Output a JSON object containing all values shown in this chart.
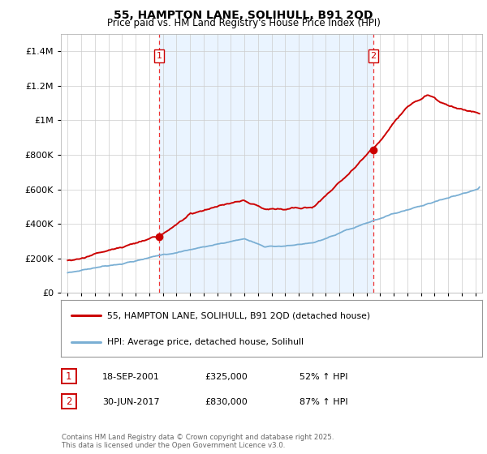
{
  "title": "55, HAMPTON LANE, SOLIHULL, B91 2QD",
  "subtitle": "Price paid vs. HM Land Registry's House Price Index (HPI)",
  "legend_label_red": "55, HAMPTON LANE, SOLIHULL, B91 2QD (detached house)",
  "legend_label_blue": "HPI: Average price, detached house, Solihull",
  "footnote": "Contains HM Land Registry data © Crown copyright and database right 2025.\nThis data is licensed under the Open Government Licence v3.0.",
  "transaction1_date": "18-SEP-2001",
  "transaction1_price": "£325,000",
  "transaction1_hpi": "52% ↑ HPI",
  "transaction2_date": "30-JUN-2017",
  "transaction2_price": "£830,000",
  "transaction2_hpi": "87% ↑ HPI",
  "vline1_x": 2001.72,
  "vline2_x": 2017.49,
  "marker1_x": 2001.72,
  "marker1_y": 325000,
  "marker2_x": 2017.49,
  "marker2_y": 830000,
  "ylim": [
    0,
    1500000
  ],
  "xlim": [
    1994.5,
    2025.5
  ],
  "background_color": "#ffffff",
  "grid_color": "#cccccc",
  "red_color": "#cc0000",
  "blue_color": "#7aafd4",
  "vline_color": "#ee3333",
  "shade_color": "#ddeeff",
  "label_box_color": "#cc0000"
}
